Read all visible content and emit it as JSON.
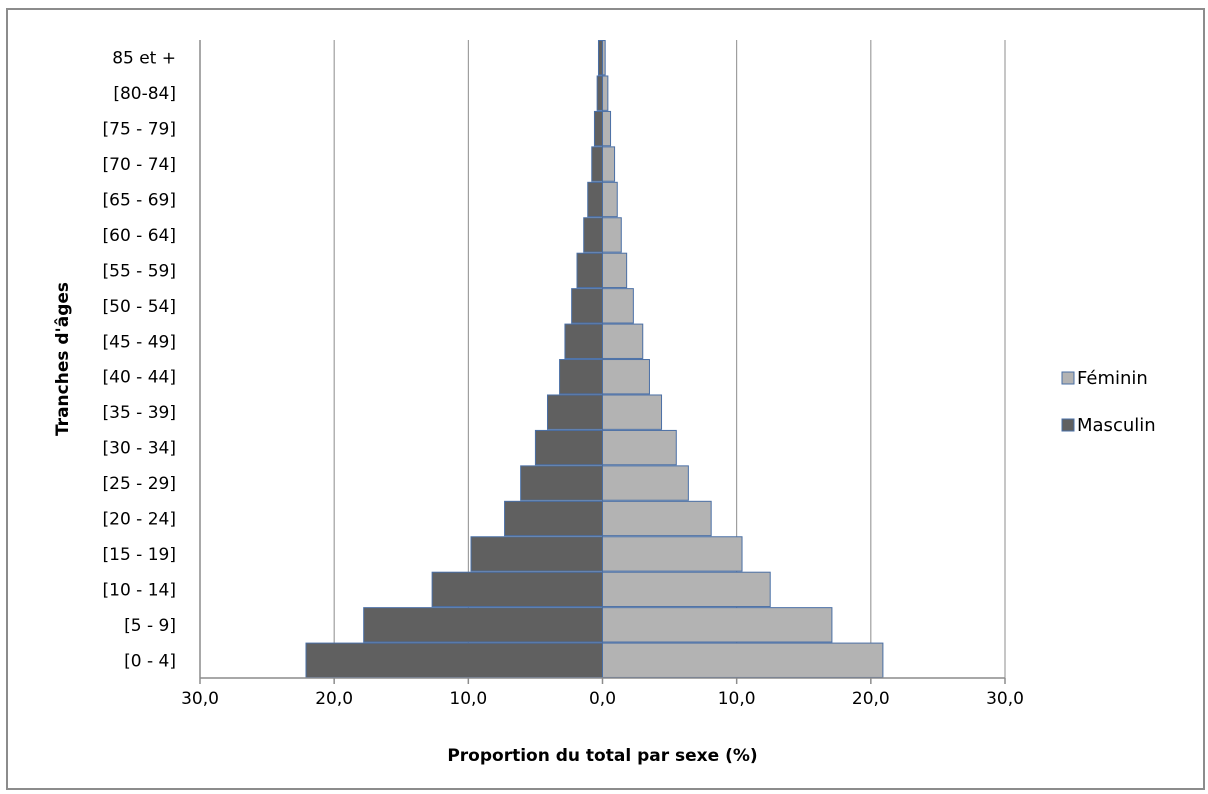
{
  "chart_data": {
    "type": "bar",
    "orientation": "horizontal",
    "xlabel": "Proportion  du total par sexe (%)",
    "ylabel": "Tranches d'âges",
    "xlim": [
      -30,
      30
    ],
    "x_ticks": [
      "30,0",
      "20,0",
      "10,0",
      "0,0",
      "10,0",
      "20,0",
      "30,0"
    ],
    "grid": "vertical",
    "legend_position": "right",
    "categories": [
      "[0 - 4]",
      "[5 - 9]",
      "[10 - 14]",
      "[15 - 19]",
      "[20 - 24]",
      "[25 - 29]",
      "[30 - 34]",
      "[35 - 39]",
      "[40 - 44]",
      "[45 - 49]",
      "[50 - 54]",
      "[55 - 59]",
      "[60 - 64]",
      "[65 - 69]",
      "[70 - 74]",
      "[75 - 79]",
      "[80-84]",
      "85 et +"
    ],
    "series": [
      {
        "name": "Féminin",
        "color": "#b3b3b3",
        "side": "right",
        "values": [
          20.9,
          17.1,
          12.5,
          10.4,
          8.1,
          6.4,
          5.5,
          4.4,
          3.5,
          3.0,
          2.3,
          1.8,
          1.4,
          1.1,
          0.9,
          0.6,
          0.4,
          0.2
        ]
      },
      {
        "name": "Masculin",
        "color": "#606060",
        "side": "left",
        "values": [
          22.1,
          17.8,
          12.7,
          9.8,
          7.3,
          6.1,
          5.0,
          4.1,
          3.2,
          2.8,
          2.3,
          1.9,
          1.4,
          1.1,
          0.8,
          0.6,
          0.4,
          0.3
        ]
      }
    ]
  }
}
